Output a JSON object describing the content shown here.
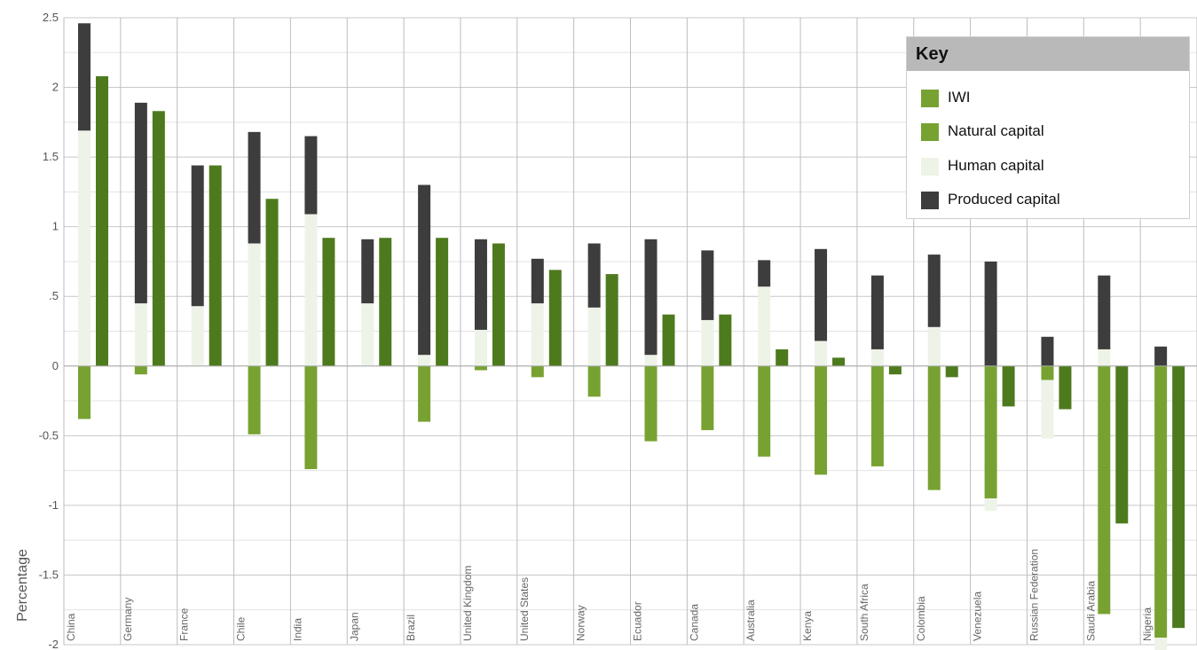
{
  "chart_data": {
    "type": "bar",
    "ylabel": "Percentage",
    "ylim": [
      -2,
      2.5
    ],
    "yticks": [
      {
        "value": 2.5,
        "label": "2.5"
      },
      {
        "value": 2,
        "label": "2"
      },
      {
        "value": 1.5,
        "label": "1.5"
      },
      {
        "value": 1,
        "label": "1"
      },
      {
        "value": 0.5,
        "label": ".5"
      },
      {
        "value": 0,
        "label": "0"
      },
      {
        "value": -0.5,
        "label": "-0.5"
      },
      {
        "value": -1,
        "label": "-1"
      },
      {
        "value": -1.5,
        "label": "-1.5"
      },
      {
        "value": -2,
        "label": "-2"
      }
    ],
    "grid": true,
    "legend_position": "top-right",
    "legend_title": "Key",
    "categories": [
      "China",
      "Germany",
      "France",
      "Chile",
      "India",
      "Japan",
      "Brazil",
      "United Kingdom",
      "United States",
      "Norway",
      "Ecuador",
      "Canada",
      "Australia",
      "Kenya",
      "South Africa",
      "Colombia",
      "Venezuela",
      "Russian Federation",
      "Saudi Arabia",
      "Nigeria"
    ],
    "series": [
      {
        "name": "IWI",
        "color": "#4e7a1e",
        "values": [
          2.08,
          1.83,
          1.44,
          1.2,
          0.92,
          0.92,
          0.92,
          0.88,
          0.69,
          0.66,
          0.37,
          0.37,
          0.12,
          0.06,
          -0.06,
          -0.08,
          -0.29,
          -0.31,
          -1.13,
          -1.88
        ]
      },
      {
        "name": "Natural capital",
        "color": "#77a232",
        "values": [
          -0.38,
          -0.06,
          0.0,
          -0.49,
          -0.74,
          0.0,
          -0.4,
          -0.03,
          -0.08,
          -0.22,
          -0.54,
          -0.46,
          -0.65,
          -0.78,
          -0.72,
          -0.89,
          -0.95,
          -0.1,
          -1.78,
          -1.95
        ]
      },
      {
        "name": "Human capital",
        "color": "#eef3e8",
        "values": [
          1.69,
          0.45,
          0.43,
          0.88,
          1.09,
          0.45,
          0.08,
          0.26,
          0.45,
          0.42,
          0.08,
          0.33,
          0.57,
          0.18,
          0.12,
          0.28,
          -0.09,
          -0.42,
          0.12,
          -0.21
        ]
      },
      {
        "name": "Produced capital",
        "color": "#3d3d3d",
        "values": [
          0.77,
          1.44,
          1.01,
          0.8,
          0.56,
          0.46,
          1.22,
          0.65,
          0.32,
          0.46,
          0.83,
          0.5,
          0.19,
          0.66,
          0.53,
          0.52,
          0.75,
          0.21,
          0.53,
          0.14
        ]
      }
    ]
  }
}
